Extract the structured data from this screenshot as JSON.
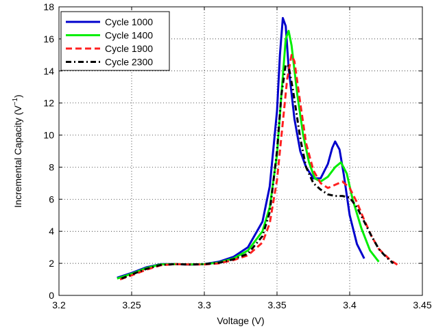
{
  "chart_data": {
    "type": "line",
    "title": "",
    "xlabel": "Voltage (V)",
    "ylabel_main": "Incremental Capacity (V",
    "ylabel_sup": "−1",
    "ylabel_tail": ")",
    "xlim": [
      3.2,
      3.45
    ],
    "ylim": [
      0,
      18
    ],
    "x_ticks": [
      3.2,
      3.25,
      3.3,
      3.35,
      3.4,
      3.45
    ],
    "x_tick_labels": [
      "3.2",
      "3.25",
      "3.3",
      "3.35",
      "3.4",
      "3.45"
    ],
    "y_ticks": [
      0,
      2,
      4,
      6,
      8,
      10,
      12,
      14,
      16,
      18
    ],
    "y_tick_labels": [
      "0",
      "2",
      "4",
      "6",
      "8",
      "10",
      "12",
      "14",
      "16",
      "18"
    ],
    "grid": true,
    "legend_position": "top-left",
    "series": [
      {
        "name": "Cycle 1000",
        "color": "#0000cc",
        "dash": "solid",
        "points": [
          [
            3.24,
            1.1
          ],
          [
            3.25,
            1.4
          ],
          [
            3.26,
            1.75
          ],
          [
            3.27,
            1.95
          ],
          [
            3.28,
            1.95
          ],
          [
            3.29,
            1.92
          ],
          [
            3.3,
            1.95
          ],
          [
            3.31,
            2.1
          ],
          [
            3.32,
            2.4
          ],
          [
            3.33,
            3.0
          ],
          [
            3.34,
            4.6
          ],
          [
            3.345,
            6.8
          ],
          [
            3.35,
            11.5
          ],
          [
            3.352,
            15.0
          ],
          [
            3.354,
            17.3
          ],
          [
            3.356,
            16.8
          ],
          [
            3.358,
            14.2
          ],
          [
            3.362,
            11.0
          ],
          [
            3.366,
            9.0
          ],
          [
            3.37,
            8.0
          ],
          [
            3.375,
            7.3
          ],
          [
            3.38,
            7.3
          ],
          [
            3.385,
            8.2
          ],
          [
            3.388,
            9.2
          ],
          [
            3.39,
            9.6
          ],
          [
            3.393,
            9.1
          ],
          [
            3.396,
            7.5
          ],
          [
            3.4,
            5.0
          ],
          [
            3.405,
            3.2
          ],
          [
            3.41,
            2.3
          ]
        ]
      },
      {
        "name": "Cycle 1400",
        "color": "#00ee00",
        "dash": "solid",
        "points": [
          [
            3.24,
            1.05
          ],
          [
            3.25,
            1.35
          ],
          [
            3.26,
            1.7
          ],
          [
            3.27,
            1.93
          ],
          [
            3.28,
            1.95
          ],
          [
            3.29,
            1.93
          ],
          [
            3.3,
            1.95
          ],
          [
            3.31,
            2.05
          ],
          [
            3.32,
            2.3
          ],
          [
            3.33,
            2.8
          ],
          [
            3.34,
            4.0
          ],
          [
            3.345,
            5.5
          ],
          [
            3.35,
            8.8
          ],
          [
            3.353,
            12.5
          ],
          [
            3.356,
            16.0
          ],
          [
            3.358,
            16.5
          ],
          [
            3.36,
            15.6
          ],
          [
            3.364,
            12.5
          ],
          [
            3.368,
            10.0
          ],
          [
            3.372,
            8.3
          ],
          [
            3.376,
            7.3
          ],
          [
            3.38,
            7.1
          ],
          [
            3.385,
            7.4
          ],
          [
            3.39,
            8.0
          ],
          [
            3.394,
            8.3
          ],
          [
            3.398,
            7.6
          ],
          [
            3.402,
            6.0
          ],
          [
            3.408,
            4.2
          ],
          [
            3.414,
            2.8
          ],
          [
            3.42,
            2.1
          ]
        ]
      },
      {
        "name": "Cycle 1900",
        "color": "#ff2020",
        "dash": "dashed",
        "points": [
          [
            3.242,
            1.0
          ],
          [
            3.25,
            1.25
          ],
          [
            3.26,
            1.6
          ],
          [
            3.27,
            1.88
          ],
          [
            3.28,
            1.95
          ],
          [
            3.29,
            1.93
          ],
          [
            3.3,
            1.93
          ],
          [
            3.31,
            2.0
          ],
          [
            3.32,
            2.2
          ],
          [
            3.33,
            2.5
          ],
          [
            3.34,
            3.3
          ],
          [
            3.345,
            4.5
          ],
          [
            3.35,
            7.2
          ],
          [
            3.354,
            10.8
          ],
          [
            3.357,
            13.5
          ],
          [
            3.36,
            15.0
          ],
          [
            3.362,
            14.6
          ],
          [
            3.366,
            12.0
          ],
          [
            3.37,
            9.5
          ],
          [
            3.375,
            7.8
          ],
          [
            3.38,
            7.0
          ],
          [
            3.385,
            6.7
          ],
          [
            3.39,
            6.9
          ],
          [
            3.395,
            7.1
          ],
          [
            3.4,
            6.7
          ],
          [
            3.405,
            5.8
          ],
          [
            3.41,
            4.7
          ],
          [
            3.415,
            3.7
          ],
          [
            3.42,
            2.9
          ],
          [
            3.428,
            2.2
          ],
          [
            3.433,
            1.9
          ]
        ]
      },
      {
        "name": "Cycle 2300",
        "color": "#000000",
        "dash": "dashdot",
        "points": [
          [
            3.243,
            1.05
          ],
          [
            3.25,
            1.3
          ],
          [
            3.26,
            1.65
          ],
          [
            3.27,
            1.9
          ],
          [
            3.28,
            1.95
          ],
          [
            3.29,
            1.93
          ],
          [
            3.3,
            1.95
          ],
          [
            3.31,
            2.03
          ],
          [
            3.32,
            2.25
          ],
          [
            3.33,
            2.6
          ],
          [
            3.34,
            3.7
          ],
          [
            3.345,
            5.2
          ],
          [
            3.35,
            9.0
          ],
          [
            3.353,
            12.5
          ],
          [
            3.356,
            14.4
          ],
          [
            3.358,
            14.3
          ],
          [
            3.361,
            12.8
          ],
          [
            3.366,
            9.8
          ],
          [
            3.37,
            8.0
          ],
          [
            3.375,
            7.0
          ],
          [
            3.38,
            6.6
          ],
          [
            3.385,
            6.3
          ],
          [
            3.39,
            6.2
          ],
          [
            3.395,
            6.2
          ],
          [
            3.4,
            6.1
          ],
          [
            3.405,
            5.5
          ],
          [
            3.41,
            4.6
          ],
          [
            3.415,
            3.7
          ],
          [
            3.42,
            2.9
          ],
          [
            3.425,
            2.4
          ],
          [
            3.43,
            2.0
          ]
        ]
      }
    ]
  }
}
